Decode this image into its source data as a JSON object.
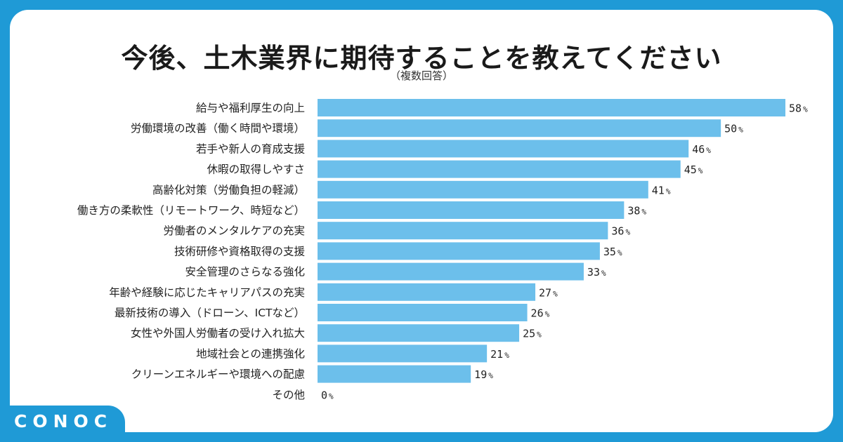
{
  "brand": {
    "logo_text": "CONOC"
  },
  "colors": {
    "bar": "#6cbfeb",
    "frame": "#1f9ad6"
  },
  "chart_data": {
    "type": "bar",
    "orientation": "horizontal",
    "title": "今後、土木業界に期待することを教えてください",
    "subtitle": "（複数回答）",
    "unit": "%",
    "xlim": [
      0,
      58
    ],
    "categories": [
      "給与や福利厚生の向上",
      "労働環境の改善（働く時間や環境）",
      "若手や新人の育成支援",
      "休暇の取得しやすさ",
      "高齢化対策（労働負担の軽減）",
      "働き方の柔軟性（リモートワーク、時短など）",
      "労働者のメンタルケアの充実",
      "技術研修や資格取得の支援",
      "安全管理のさらなる強化",
      "年齢や経験に応じたキャリアパスの充実",
      "最新技術の導入（ドローン、ICTなど）",
      "女性や外国人労働者の受け入れ拡大",
      "地域社会との連携強化",
      "クリーンエネルギーや環境への配慮",
      "その他"
    ],
    "values": [
      58,
      50,
      46,
      45,
      41,
      38,
      36,
      35,
      33,
      27,
      26,
      25,
      21,
      19,
      0
    ]
  }
}
